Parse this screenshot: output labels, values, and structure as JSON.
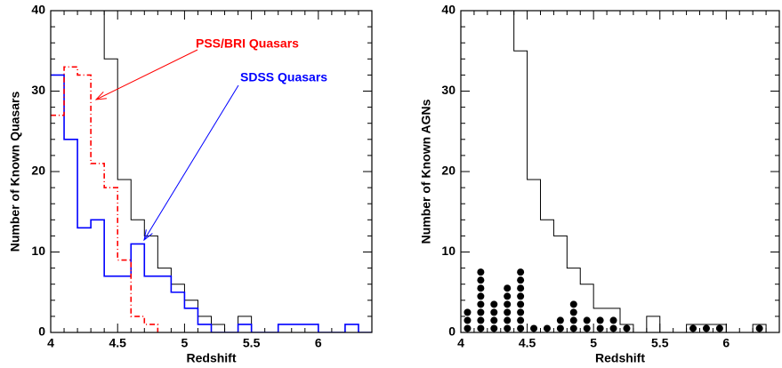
{
  "chart_data": [
    {
      "type": "step",
      "xlabel": "Redshift",
      "ylabel": "Number of Known Quasars",
      "xlim": [
        4,
        6.4
      ],
      "ylim": [
        0,
        40
      ],
      "xticks": [
        4,
        4.5,
        5,
        5.5,
        6
      ],
      "yticks": [
        0,
        10,
        20,
        30,
        40
      ],
      "series": [
        {
          "color": "#000000",
          "bins": [
            4.4,
            4.5,
            4.6,
            4.7,
            4.8,
            4.9,
            5.0,
            5.1,
            5.2,
            5.3,
            5.4,
            5.5,
            5.6,
            5.7,
            5.8,
            5.9,
            6.0,
            6.1,
            6.2,
            6.3,
            6.4
          ],
          "values": [
            34,
            19,
            14,
            12,
            8,
            6,
            4,
            2,
            1,
            0,
            2,
            0,
            0,
            1,
            1,
            1,
            0,
            0,
            1,
            0
          ]
        },
        {
          "name": "SDSS Quasars",
          "color": "#0000ff",
          "bins": [
            4.0,
            4.1,
            4.2,
            4.3,
            4.4,
            4.5,
            4.6,
            4.7,
            4.8,
            4.9,
            5.0,
            5.1,
            5.2,
            5.3,
            5.4,
            5.5,
            5.6,
            5.7,
            5.8,
            5.9,
            6.0,
            6.1,
            6.2,
            6.3,
            6.4
          ],
          "values": [
            32,
            24,
            13,
            14,
            7,
            7,
            11,
            7,
            7,
            5,
            3,
            1,
            0,
            0,
            1,
            0,
            0,
            1,
            1,
            1,
            0,
            0,
            1,
            0
          ]
        },
        {
          "name": "PSS/BRI Quasars",
          "color": "#ff0000",
          "dash": "6 3 1 3",
          "bins": [
            4.0,
            4.1,
            4.2,
            4.3,
            4.4,
            4.5,
            4.6,
            4.7,
            4.8
          ],
          "values": [
            27,
            33,
            32,
            21,
            18,
            9,
            2,
            1
          ]
        }
      ]
    },
    {
      "type": "step",
      "xlabel": "Redshift",
      "ylabel": "Number of Known AGNs",
      "xlim": [
        4,
        6.4
      ],
      "ylim": [
        0,
        40
      ],
      "xticks": [
        4,
        4.5,
        5,
        5.5,
        6
      ],
      "yticks": [
        0,
        10,
        20,
        30,
        40
      ],
      "series": [
        {
          "color": "#000000",
          "bins": [
            4.4,
            4.5,
            4.6,
            4.7,
            4.8,
            4.9,
            5.0,
            5.1,
            5.2,
            5.3,
            5.4,
            5.5,
            5.6,
            5.7,
            5.8,
            5.9,
            6.0,
            6.1,
            6.2,
            6.3,
            6.4
          ],
          "values": [
            35,
            19,
            14,
            12,
            8,
            6,
            3,
            3,
            1,
            0,
            2,
            0,
            0,
            1,
            1,
            1,
            0,
            0,
            1,
            0
          ]
        }
      ],
      "dots": {
        "color": "#000000",
        "x": [
          4.05,
          4.15,
          4.25,
          4.35,
          4.45,
          4.55,
          4.65,
          4.75,
          4.85,
          4.95,
          5.05,
          5.15,
          5.25,
          5.75,
          5.85,
          5.95,
          6.25
        ],
        "counts": [
          3,
          8,
          4,
          6,
          8,
          1,
          1,
          2,
          4,
          2,
          2,
          2,
          1,
          1,
          1,
          1,
          1
        ]
      }
    }
  ]
}
